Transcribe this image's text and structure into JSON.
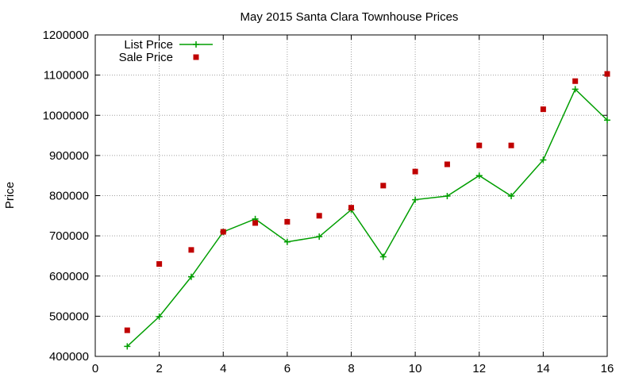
{
  "chart_data": {
    "type": "line",
    "title": "May 2015 Santa Clara Townhouse Prices",
    "xlabel": "",
    "ylabel": "Price",
    "xlim": [
      0,
      16
    ],
    "ylim": [
      400000,
      1200000
    ],
    "xticks": [
      0,
      2,
      4,
      6,
      8,
      10,
      12,
      14,
      16
    ],
    "yticks": [
      400000,
      500000,
      600000,
      700000,
      800000,
      900000,
      1000000,
      1100000,
      1200000
    ],
    "grid": true,
    "legend_position": "top-left",
    "x": [
      1,
      2,
      3,
      4,
      5,
      6,
      7,
      8,
      9,
      10,
      11,
      12,
      13,
      14,
      15,
      16
    ],
    "series": [
      {
        "name": "List Price",
        "style": "line-plus",
        "color": "#009e00",
        "values": [
          425000,
          499000,
          598000,
          710000,
          742000,
          685000,
          698000,
          765000,
          648000,
          790000,
          799000,
          850000,
          799000,
          889000,
          1065000,
          988000
        ]
      },
      {
        "name": "Sale Price",
        "style": "square-points",
        "color": "#c00000",
        "values": [
          465000,
          630000,
          665000,
          710000,
          732000,
          735000,
          750000,
          770000,
          825000,
          860000,
          878000,
          925000,
          925000,
          1015000,
          1085000,
          1103000
        ]
      }
    ]
  }
}
